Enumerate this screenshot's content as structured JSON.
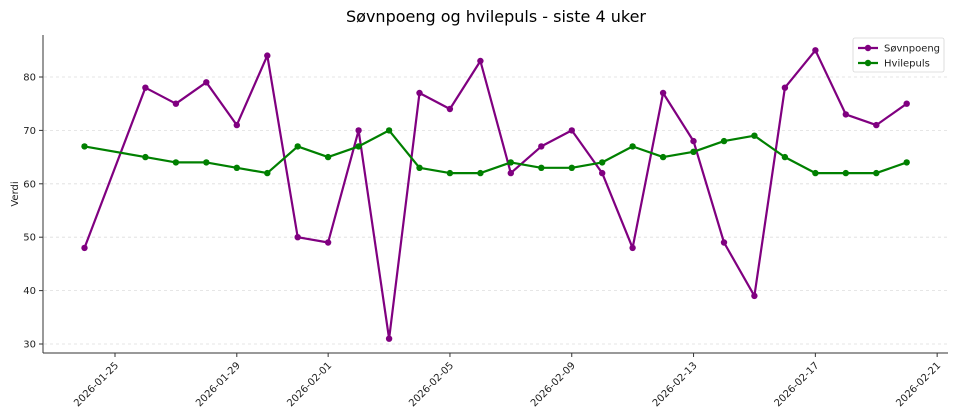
{
  "chart_data": {
    "type": "line",
    "title": "Søvnpoeng og hvilepuls - siste 4 uker",
    "xlabel": "",
    "ylabel": "Verdi",
    "ylim": [
      28.4,
      87.7
    ],
    "xlim": [
      "2026-01-22",
      "2026-02-21"
    ],
    "grid": {
      "horizontal": true,
      "vertical": false,
      "style": "dashed"
    },
    "legend_position": "upper right",
    "y_ticks": [
      30,
      40,
      50,
      60,
      70,
      80
    ],
    "x_ticks": [
      "2026-01-25",
      "2026-01-29",
      "2026-02-01",
      "2026-02-05",
      "2026-02-09",
      "2026-02-13",
      "2026-02-17",
      "2026-02-21"
    ],
    "x": [
      "2026-01-24",
      "2026-01-26",
      "2026-01-27",
      "2026-01-28",
      "2026-01-29",
      "2026-01-30",
      "2026-01-31",
      "2026-02-01",
      "2026-02-02",
      "2026-02-03",
      "2026-02-04",
      "2026-02-05",
      "2026-02-06",
      "2026-02-07",
      "2026-02-08",
      "2026-02-09",
      "2026-02-10",
      "2026-02-11",
      "2026-02-12",
      "2026-02-13",
      "2026-02-14",
      "2026-02-15",
      "2026-02-16",
      "2026-02-17",
      "2026-02-18",
      "2026-02-19",
      "2026-02-20"
    ],
    "series": [
      {
        "name": "Søvnpoeng",
        "color": "#800080",
        "marker": "circle",
        "values": [
          48,
          78,
          75,
          79,
          71,
          84,
          50,
          49,
          70,
          31,
          77,
          74,
          83,
          62,
          67,
          70,
          62,
          48,
          77,
          68,
          49,
          39,
          78,
          85,
          73,
          71,
          75
        ]
      },
      {
        "name": "Hvilepuls",
        "color": "#008000",
        "marker": "circle",
        "values": [
          67,
          65,
          64,
          64,
          63,
          62,
          67,
          65,
          67,
          70,
          63,
          62,
          62,
          64,
          63,
          63,
          64,
          67,
          65,
          66,
          68,
          69,
          65,
          62,
          62,
          62,
          64
        ]
      }
    ]
  }
}
